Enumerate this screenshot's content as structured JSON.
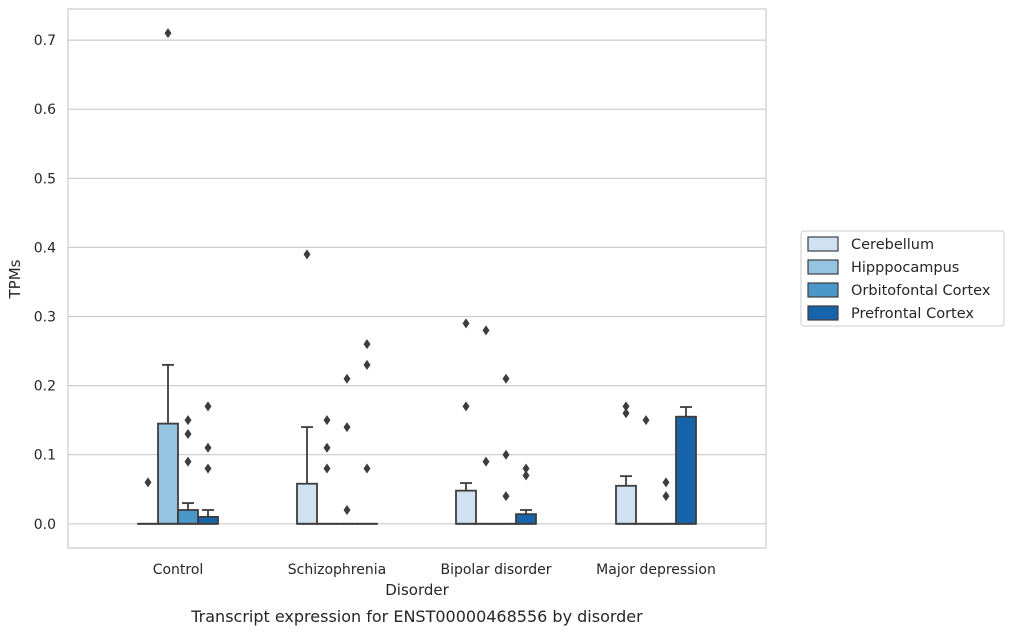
{
  "chart_data": {
    "type": "box",
    "caption": "Transcript expression for ENST00000468556 by disorder",
    "xlabel": "Disorder",
    "ylabel": "TPMs",
    "ylim": [
      -0.035,
      0.745
    ],
    "yticks": [
      "0.0",
      "0.1",
      "0.2",
      "0.3",
      "0.4",
      "0.5",
      "0.6",
      "0.7"
    ],
    "ytick_values": [
      0,
      0.1,
      0.2,
      0.3,
      0.4,
      0.5,
      0.6,
      0.7
    ],
    "grid": true,
    "legend_position": "right",
    "categories": [
      "Control",
      "Schizophrenia",
      "Bipolar disorder",
      "Major depression"
    ],
    "series": [
      {
        "name": "Cerebellum",
        "color": "#d0e1f2",
        "boxes": [
          {
            "q1": 0,
            "median": 0,
            "q3": 0,
            "whisker_low": 0,
            "whisker_high": 0,
            "outliers": [
              0.06
            ]
          },
          {
            "q1": 0,
            "median": 0,
            "q3": 0.058,
            "whisker_low": 0,
            "whisker_high": 0.14,
            "outliers": [
              0.39
            ]
          },
          {
            "q1": 0,
            "median": 0,
            "q3": 0.048,
            "whisker_low": 0,
            "whisker_high": 0.059,
            "outliers": [
              0.17,
              0.29
            ]
          },
          {
            "q1": 0,
            "median": 0,
            "q3": 0.055,
            "whisker_low": 0,
            "whisker_high": 0.069,
            "outliers": [
              0.16,
              0.17
            ]
          }
        ]
      },
      {
        "name": "Hipppocampus",
        "color": "#94c4df",
        "boxes": [
          {
            "q1": 0,
            "median": 0,
            "q3": 0.145,
            "whisker_low": 0,
            "whisker_high": 0.23,
            "outliers": [
              0.71
            ]
          },
          {
            "q1": 0,
            "median": 0,
            "q3": 0,
            "whisker_low": 0,
            "whisker_high": 0,
            "outliers": [
              0.08,
              0.11,
              0.15
            ]
          },
          {
            "q1": 0,
            "median": 0,
            "q3": 0,
            "whisker_low": 0,
            "whisker_high": 0,
            "outliers": [
              0.09,
              0.28
            ]
          },
          {
            "q1": 0,
            "median": 0,
            "q3": 0,
            "whisker_low": 0,
            "whisker_high": 0,
            "outliers": [
              0.15
            ]
          }
        ]
      },
      {
        "name": "Orbitofontal Cortex",
        "color": "#4a98c9",
        "boxes": [
          {
            "q1": 0,
            "median": 0,
            "q3": 0.02,
            "whisker_low": 0,
            "whisker_high": 0.03,
            "outliers": [
              0.09,
              0.13,
              0.15
            ]
          },
          {
            "q1": 0,
            "median": 0,
            "q3": 0,
            "whisker_low": 0,
            "whisker_high": 0,
            "outliers": [
              0.02,
              0.14,
              0.21
            ]
          },
          {
            "q1": 0,
            "median": 0,
            "q3": 0,
            "whisker_low": 0,
            "whisker_high": 0,
            "outliers": [
              0.04,
              0.1,
              0.21
            ]
          },
          {
            "q1": 0,
            "median": 0,
            "q3": 0,
            "whisker_low": 0,
            "whisker_high": 0,
            "outliers": [
              0.04,
              0.06
            ]
          }
        ]
      },
      {
        "name": "Prefrontal Cortex",
        "color": "#1764ab",
        "boxes": [
          {
            "q1": 0,
            "median": 0,
            "q3": 0.01,
            "whisker_low": 0,
            "whisker_high": 0.02,
            "outliers": [
              0.08,
              0.11,
              0.17
            ]
          },
          {
            "q1": 0,
            "median": 0,
            "q3": 0,
            "whisker_low": 0,
            "whisker_high": 0,
            "outliers": [
              0.08,
              0.23,
              0.26
            ]
          },
          {
            "q1": 0,
            "median": 0,
            "q3": 0.014,
            "whisker_low": 0,
            "whisker_high": 0.02,
            "outliers": [
              0.07,
              0.08
            ]
          },
          {
            "q1": 0,
            "median": 0,
            "q3": 0.155,
            "whisker_low": 0,
            "whisker_high": 0.169,
            "outliers": []
          }
        ]
      }
    ]
  }
}
